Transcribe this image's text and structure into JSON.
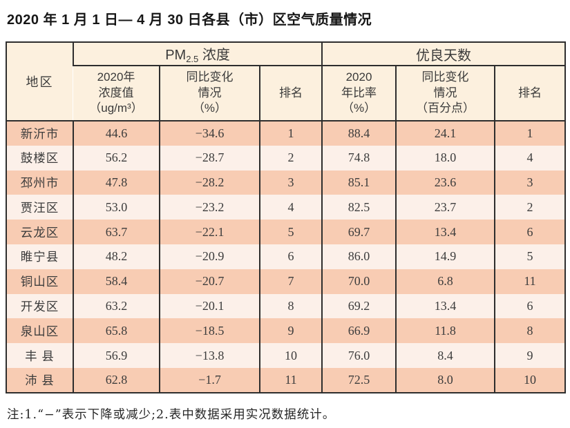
{
  "title": "2020 年 1 月 1 日— 4 月 30 日各县（市）区空气质量情况",
  "note": "注:1.“−”表示下降或减少;2.表中数据采用实况数据统计。",
  "colors": {
    "header_bg": "#fcf0de",
    "row_stripe_dark": "#f8ccb3",
    "row_stripe_light": "#fcf0e9",
    "border": "#2d2d2d",
    "text": "#3c3c3c"
  },
  "table": {
    "region_header": "地区",
    "pm_group": {
      "main": "PM",
      "sub": "2.5",
      "suffix": " 浓度"
    },
    "good_group": "优良天数",
    "subheaders": [
      "2020年\n浓度值\n（ug/m³）",
      "同比变化\n情况\n（%）",
      "排名",
      "2020\n年比率\n（%）",
      "同比变化\n情况\n（百分点）",
      "排名"
    ],
    "rows": [
      {
        "region": "新沂市",
        "pm_value": "44.6",
        "pm_change": "−34.6",
        "pm_rank": "1",
        "good_rate": "88.4",
        "good_change": "24.1",
        "good_rank": "1"
      },
      {
        "region": "鼓楼区",
        "pm_value": "56.2",
        "pm_change": "−28.7",
        "pm_rank": "2",
        "good_rate": "74.8",
        "good_change": "18.0",
        "good_rank": "4"
      },
      {
        "region": "邳州市",
        "pm_value": "47.8",
        "pm_change": "−28.2",
        "pm_rank": "3",
        "good_rate": "85.1",
        "good_change": "23.6",
        "good_rank": "3"
      },
      {
        "region": "贾汪区",
        "pm_value": "53.0",
        "pm_change": "−23.2",
        "pm_rank": "4",
        "good_rate": "82.5",
        "good_change": "23.7",
        "good_rank": "2"
      },
      {
        "region": "云龙区",
        "pm_value": "63.7",
        "pm_change": "−22.1",
        "pm_rank": "5",
        "good_rate": "69.7",
        "good_change": "13.4",
        "good_rank": "6"
      },
      {
        "region": "睢宁县",
        "pm_value": "48.2",
        "pm_change": "−20.9",
        "pm_rank": "6",
        "good_rate": "86.0",
        "good_change": "14.9",
        "good_rank": "5"
      },
      {
        "region": "铜山区",
        "pm_value": "58.4",
        "pm_change": "−20.7",
        "pm_rank": "7",
        "good_rate": "70.0",
        "good_change": "6.8",
        "good_rank": "11"
      },
      {
        "region": "开发区",
        "pm_value": "63.2",
        "pm_change": "−20.1",
        "pm_rank": "8",
        "good_rate": "69.2",
        "good_change": "13.4",
        "good_rank": "6"
      },
      {
        "region": "泉山区",
        "pm_value": "65.8",
        "pm_change": "−18.5",
        "pm_rank": "9",
        "good_rate": "66.9",
        "good_change": "11.8",
        "good_rank": "8"
      },
      {
        "region": "丰 县",
        "pm_value": "56.9",
        "pm_change": "−13.8",
        "pm_rank": "10",
        "good_rate": "76.0",
        "good_change": "8.4",
        "good_rank": "9"
      },
      {
        "region": "沛 县",
        "pm_value": "62.8",
        "pm_change": "−1.7",
        "pm_rank": "11",
        "good_rate": "72.5",
        "good_change": "8.0",
        "good_rank": "10"
      }
    ]
  }
}
